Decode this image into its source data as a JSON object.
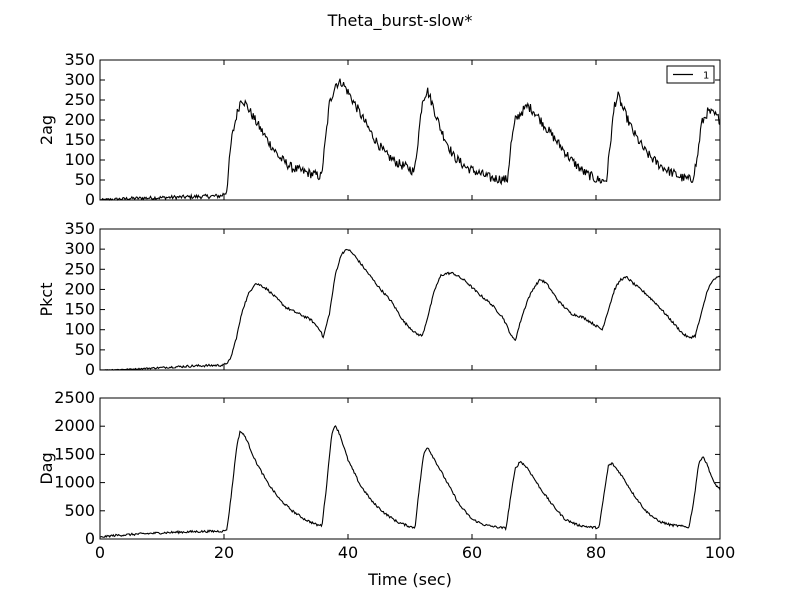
{
  "figure": {
    "title": "Theta_burst-slow*",
    "xlabel": "Time (sec)"
  },
  "chart_data": [
    {
      "type": "line",
      "ylabel": "2ag",
      "xlim": [
        0,
        100
      ],
      "ylim": [
        0,
        350
      ],
      "x_ticks": [
        0,
        20,
        40,
        60,
        80,
        100
      ],
      "y_ticks": [
        0,
        50,
        100,
        150,
        200,
        250,
        300,
        350
      ],
      "legend": {
        "position": "top-right",
        "entries": [
          "1"
        ]
      },
      "noise": 12,
      "series": [
        {
          "name": "1",
          "color": "#000000",
          "points": [
            [
              0,
              0
            ],
            [
              5,
              4
            ],
            [
              10,
              6
            ],
            [
              15,
              8
            ],
            [
              19.5,
              10
            ],
            [
              20.4,
              20
            ],
            [
              21.2,
              150
            ],
            [
              22,
              210
            ],
            [
              22.8,
              255
            ],
            [
              23.5,
              240
            ],
            [
              25,
              200
            ],
            [
              27,
              150
            ],
            [
              29,
              105
            ],
            [
              31,
              80
            ],
            [
              33,
              70
            ],
            [
              35,
              62
            ],
            [
              35.7,
              58
            ],
            [
              36.3,
              140
            ],
            [
              37,
              240
            ],
            [
              38,
              290
            ],
            [
              39,
              295
            ],
            [
              40,
              270
            ],
            [
              42,
              215
            ],
            [
              44,
              160
            ],
            [
              46,
              115
            ],
            [
              48,
              92
            ],
            [
              50,
              78
            ],
            [
              50.7,
              70
            ],
            [
              51.3,
              150
            ],
            [
              52,
              250
            ],
            [
              52.8,
              275
            ],
            [
              53.6,
              240
            ],
            [
              55,
              175
            ],
            [
              57,
              110
            ],
            [
              59,
              82
            ],
            [
              61,
              68
            ],
            [
              63,
              55
            ],
            [
              65,
              52
            ],
            [
              65.7,
              50
            ],
            [
              66.3,
              140
            ],
            [
              67,
              200
            ],
            [
              68,
              220
            ],
            [
              69,
              235
            ],
            [
              70,
              222
            ],
            [
              72,
              180
            ],
            [
              74,
              140
            ],
            [
              76,
              100
            ],
            [
              78,
              70
            ],
            [
              80,
              52
            ],
            [
              81,
              48
            ],
            [
              81.7,
              50
            ],
            [
              82.3,
              140
            ],
            [
              83,
              240
            ],
            [
              83.6,
              260
            ],
            [
              84.3,
              230
            ],
            [
              86,
              170
            ],
            [
              88,
              120
            ],
            [
              90,
              90
            ],
            [
              92,
              70
            ],
            [
              94,
              55
            ],
            [
              95.5,
              50
            ],
            [
              96.3,
              100
            ],
            [
              97,
              190
            ],
            [
              98,
              220
            ],
            [
              99,
              215
            ],
            [
              100,
              200
            ]
          ]
        }
      ]
    },
    {
      "type": "line",
      "ylabel": "Pkct",
      "xlim": [
        0,
        100
      ],
      "ylim": [
        0,
        350
      ],
      "x_ticks": [
        0,
        20,
        40,
        60,
        80,
        100
      ],
      "y_ticks": [
        0,
        50,
        100,
        150,
        200,
        250,
        300,
        350
      ],
      "noise": 3,
      "series": [
        {
          "color": "#000000",
          "points": [
            [
              0,
              0
            ],
            [
              5,
              2
            ],
            [
              10,
              6
            ],
            [
              15,
              10
            ],
            [
              20,
              12
            ],
            [
              21,
              25
            ],
            [
              22,
              80
            ],
            [
              23,
              150
            ],
            [
              24,
              190
            ],
            [
              25,
              215
            ],
            [
              26,
              210
            ],
            [
              27,
              200
            ],
            [
              28,
              185
            ],
            [
              30,
              155
            ],
            [
              32,
              140
            ],
            [
              34,
              125
            ],
            [
              35.5,
              100
            ],
            [
              36,
              80
            ],
            [
              37,
              140
            ],
            [
              38,
              240
            ],
            [
              39,
              290
            ],
            [
              40,
              300
            ],
            [
              41,
              285
            ],
            [
              43,
              245
            ],
            [
              45,
              205
            ],
            [
              47,
              170
            ],
            [
              49,
              120
            ],
            [
              51,
              90
            ],
            [
              52,
              85
            ],
            [
              53,
              140
            ],
            [
              54,
              200
            ],
            [
              55,
              235
            ],
            [
              56,
              240
            ],
            [
              57,
              240
            ],
            [
              59,
              220
            ],
            [
              61,
              190
            ],
            [
              63,
              165
            ],
            [
              65,
              130
            ],
            [
              66.5,
              80
            ],
            [
              67,
              75
            ],
            [
              68,
              130
            ],
            [
              69,
              175
            ],
            [
              70,
              205
            ],
            [
              71,
              225
            ],
            [
              72,
              215
            ],
            [
              74,
              170
            ],
            [
              76,
              140
            ],
            [
              78,
              130
            ],
            [
              80,
              110
            ],
            [
              81,
              100
            ],
            [
              82,
              150
            ],
            [
              83,
              200
            ],
            [
              84,
              225
            ],
            [
              85,
              230
            ],
            [
              86,
              215
            ],
            [
              88,
              190
            ],
            [
              90,
              160
            ],
            [
              92,
              125
            ],
            [
              94,
              90
            ],
            [
              95,
              80
            ],
            [
              96,
              85
            ],
            [
              97,
              140
            ],
            [
              98,
              200
            ],
            [
              99,
              225
            ],
            [
              100,
              232
            ]
          ]
        }
      ]
    },
    {
      "type": "line",
      "ylabel": "Dag",
      "xlim": [
        0,
        100
      ],
      "ylim": [
        0,
        2500
      ],
      "x_ticks": [
        0,
        20,
        40,
        60,
        80,
        100
      ],
      "y_ticks": [
        0,
        500,
        1000,
        1500,
        2000,
        2500
      ],
      "noise": 20,
      "series": [
        {
          "color": "#000000",
          "points": [
            [
              0,
              30
            ],
            [
              2,
              60
            ],
            [
              5,
              80
            ],
            [
              10,
              110
            ],
            [
              15,
              130
            ],
            [
              20,
              140
            ],
            [
              20.5,
              180
            ],
            [
              21.3,
              900
            ],
            [
              22,
              1600
            ],
            [
              22.6,
              1920
            ],
            [
              23.5,
              1800
            ],
            [
              25,
              1400
            ],
            [
              27,
              1000
            ],
            [
              29,
              700
            ],
            [
              31,
              500
            ],
            [
              33,
              350
            ],
            [
              35,
              250
            ],
            [
              35.8,
              240
            ],
            [
              36.5,
              900
            ],
            [
              37.3,
              1800
            ],
            [
              37.9,
              2030
            ],
            [
              38.7,
              1850
            ],
            [
              40,
              1400
            ],
            [
              42,
              950
            ],
            [
              44,
              650
            ],
            [
              46,
              450
            ],
            [
              48,
              300
            ],
            [
              50,
              220
            ],
            [
              50.8,
              200
            ],
            [
              51.5,
              900
            ],
            [
              52.2,
              1500
            ],
            [
              52.8,
              1640
            ],
            [
              54,
              1400
            ],
            [
              56,
              1000
            ],
            [
              58,
              600
            ],
            [
              60,
              350
            ],
            [
              62,
              250
            ],
            [
              64,
              210
            ],
            [
              65.5,
              190
            ],
            [
              66.3,
              800
            ],
            [
              67,
              1250
            ],
            [
              67.8,
              1380
            ],
            [
              69,
              1250
            ],
            [
              71,
              900
            ],
            [
              73,
              600
            ],
            [
              75,
              350
            ],
            [
              77,
              250
            ],
            [
              79,
              210
            ],
            [
              80.5,
              200
            ],
            [
              81.3,
              800
            ],
            [
              82,
              1300
            ],
            [
              82.6,
              1340
            ],
            [
              84,
              1150
            ],
            [
              86,
              800
            ],
            [
              88,
              500
            ],
            [
              90,
              320
            ],
            [
              92,
              250
            ],
            [
              95,
              210
            ],
            [
              95.8,
              700
            ],
            [
              96.5,
              1300
            ],
            [
              97.2,
              1480
            ],
            [
              98,
              1300
            ],
            [
              99,
              1000
            ],
            [
              100,
              880
            ]
          ]
        }
      ]
    }
  ]
}
